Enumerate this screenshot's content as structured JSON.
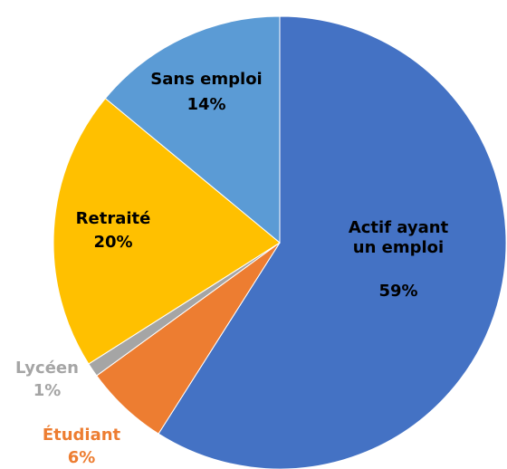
{
  "chart_data": {
    "type": "pie",
    "categories": [
      "Actif ayant un emploi",
      "Étudiant",
      "Lycéen",
      "Retraité",
      "Sans emploi"
    ],
    "values": [
      59,
      6,
      1,
      20,
      14
    ],
    "value_labels": [
      "59%",
      "6%",
      "1%",
      "20%",
      "14%"
    ],
    "colors": [
      "#4472c4",
      "#ed7d31",
      "#a5a5a5",
      "#ffc000",
      "#5b9bd5"
    ]
  }
}
